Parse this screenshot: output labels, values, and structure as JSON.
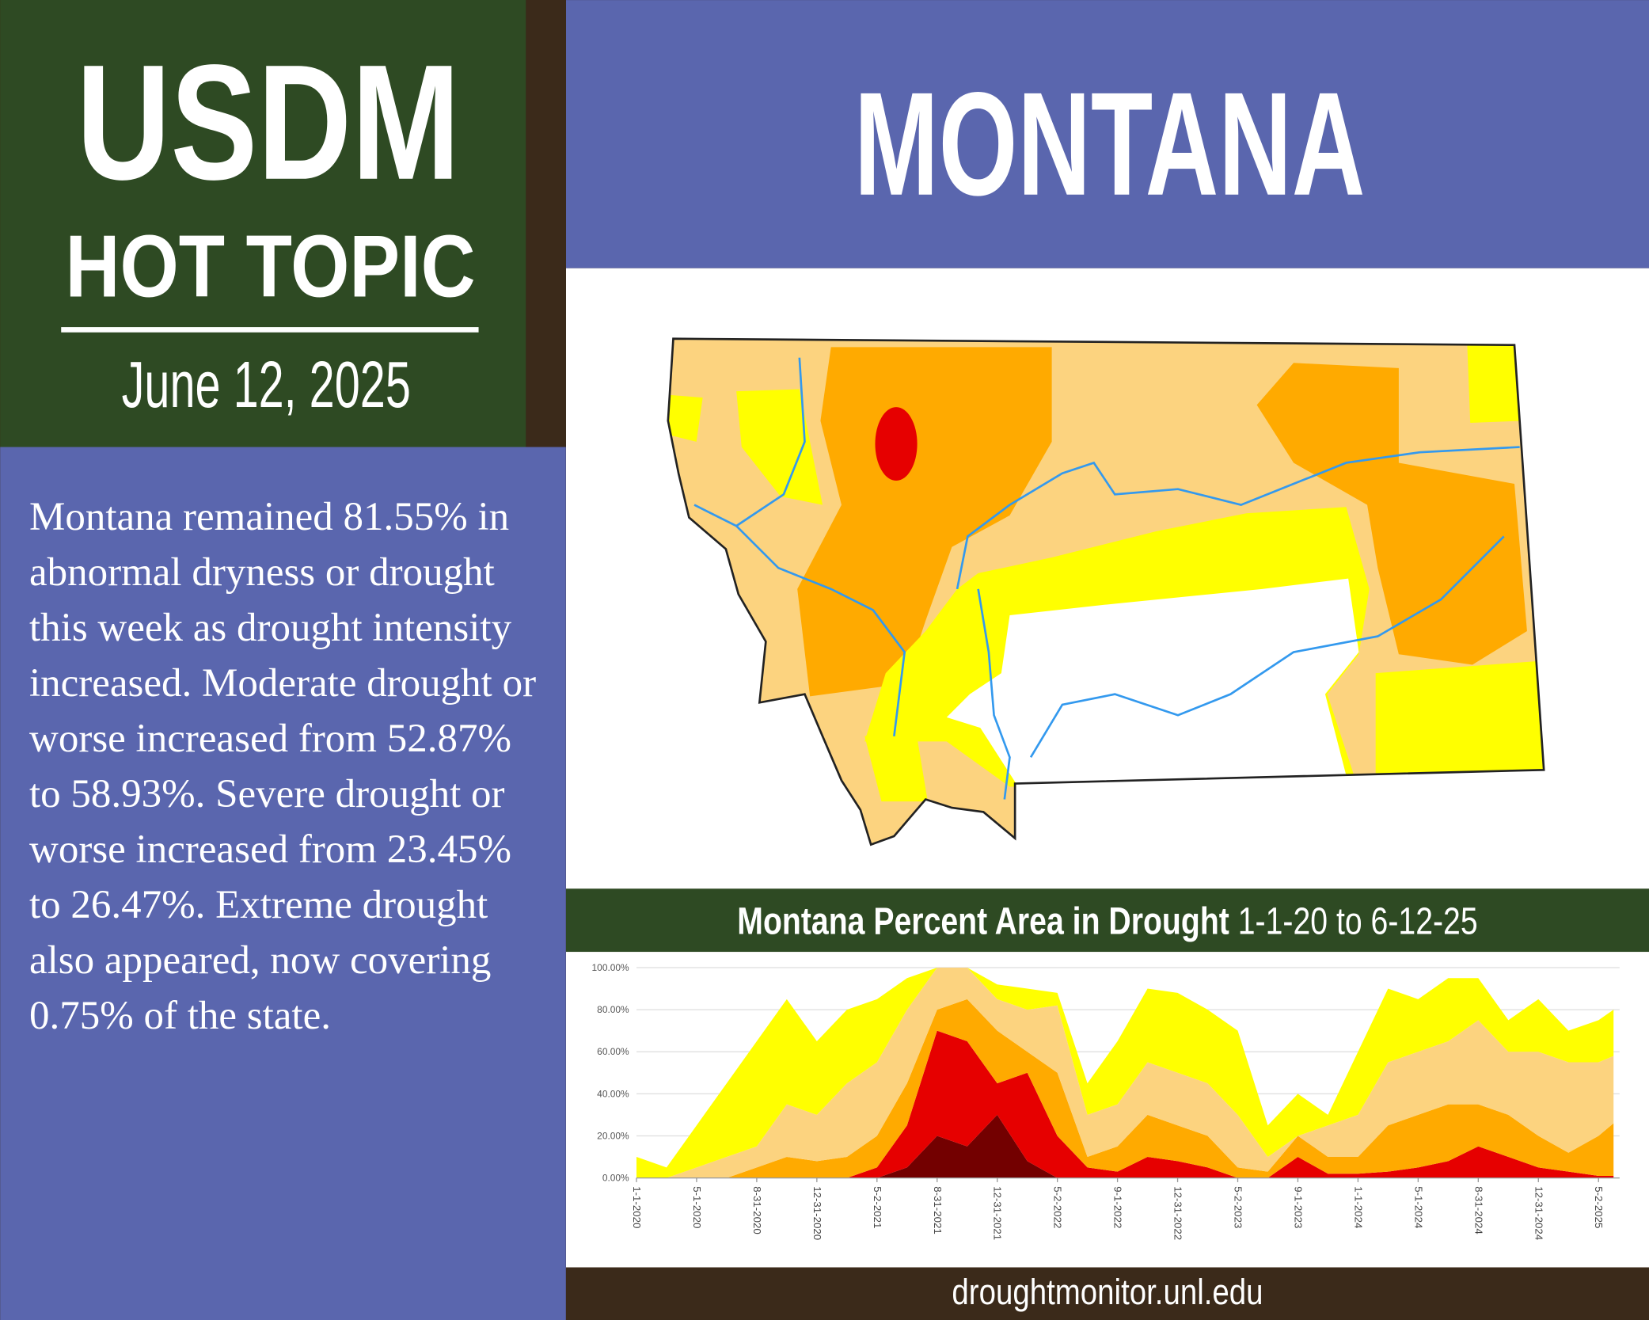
{
  "header": {
    "line1": "USDM",
    "line2": "HOT TOPIC",
    "date": "June 12, 2025"
  },
  "state": "MONTANA",
  "body": "Montana remained 81.55% in abnormal dryness or drought this week as drought intensity increased. Moderate drought or worse increased from 52.87% to 58.93%. Severe drought or worse increased from 23.45% to 26.47%. Extreme drought also appeared, now covering 0.75% of the state.",
  "chart_data": {
    "type": "area",
    "title": "Montana Percent Area in Drought",
    "subtitle": "1-1-20 to 6-12-25",
    "x": [
      0,
      2,
      4,
      6,
      8,
      10,
      12,
      14,
      16,
      18,
      20,
      22,
      24,
      26,
      28,
      30,
      32,
      34,
      36,
      38,
      40,
      42,
      44,
      46,
      48,
      50,
      52,
      54,
      56,
      58,
      60,
      62,
      64,
      65
    ],
    "xlim": [
      0,
      65.4
    ],
    "xticks": [
      {
        "value": 0,
        "label": "1-1-2020"
      },
      {
        "value": 4,
        "label": "5-1-2020"
      },
      {
        "value": 8,
        "label": "8-31-2020"
      },
      {
        "value": 12,
        "label": "12-31-2020"
      },
      {
        "value": 16,
        "label": "5-2-2021"
      },
      {
        "value": 20,
        "label": "8-31-2021"
      },
      {
        "value": 24,
        "label": "12-31-2021"
      },
      {
        "value": 28,
        "label": "5-2-2022"
      },
      {
        "value": 32,
        "label": "9-1-2022"
      },
      {
        "value": 36,
        "label": "12-31-2022"
      },
      {
        "value": 40,
        "label": "5-2-2023"
      },
      {
        "value": 44,
        "label": "9-1-2023"
      },
      {
        "value": 48,
        "label": "1-1-2024"
      },
      {
        "value": 52,
        "label": "5-1-2024"
      },
      {
        "value": 56,
        "label": "8-31-2024"
      },
      {
        "value": 60,
        "label": "12-31-2024"
      },
      {
        "value": 64,
        "label": "5-2-2025"
      }
    ],
    "ylim": [
      0,
      100
    ],
    "yticks": [
      {
        "value": 0,
        "label": "0.00%"
      },
      {
        "value": 20,
        "label": "20.00%"
      },
      {
        "value": 40,
        "label": "40.00%"
      },
      {
        "value": 60,
        "label": "60.00%"
      },
      {
        "value": 80,
        "label": "80.00%"
      },
      {
        "value": 100,
        "label": "100.00%"
      }
    ],
    "grid": true,
    "series": [
      {
        "color": "#730000",
        "values": [
          0,
          0,
          0,
          0,
          0,
          0,
          0,
          0,
          0,
          5,
          20,
          15,
          30,
          8,
          0,
          0,
          0,
          0,
          0,
          0,
          0,
          0,
          0,
          0,
          0,
          0,
          0,
          0,
          0,
          0,
          0,
          0,
          0,
          0
        ]
      },
      {
        "color": "#e60000",
        "values": [
          0,
          0,
          0,
          0,
          0,
          0,
          0,
          0,
          5,
          20,
          50,
          50,
          15,
          42,
          20,
          5,
          3,
          10,
          8,
          5,
          0,
          0,
          10,
          2,
          2,
          3,
          5,
          8,
          15,
          10,
          5,
          3,
          1,
          1
        ]
      },
      {
        "color": "#ffaa00",
        "values": [
          0,
          0,
          0,
          0,
          5,
          10,
          8,
          10,
          15,
          20,
          10,
          20,
          25,
          10,
          30,
          5,
          12,
          20,
          17,
          15,
          5,
          3,
          10,
          8,
          8,
          22,
          25,
          27,
          20,
          20,
          15,
          9,
          19,
          25
        ]
      },
      {
        "color": "#fcd37f",
        "values": [
          0,
          0,
          5,
          10,
          10,
          25,
          22,
          35,
          35,
          35,
          20,
          15,
          15,
          20,
          32,
          20,
          20,
          25,
          25,
          25,
          25,
          7,
          0,
          15,
          20,
          30,
          30,
          30,
          40,
          30,
          40,
          43,
          35,
          32
        ]
      },
      {
        "color": "#ffff00",
        "values": [
          10,
          5,
          20,
          35,
          50,
          50,
          35,
          35,
          30,
          15,
          0,
          0,
          7,
          10,
          6,
          15,
          30,
          35,
          38,
          35,
          40,
          15,
          20,
          5,
          30,
          35,
          25,
          30,
          20,
          15,
          25,
          15,
          20,
          22
        ]
      }
    ]
  },
  "footer": "droughtmonitor.unl.edu"
}
